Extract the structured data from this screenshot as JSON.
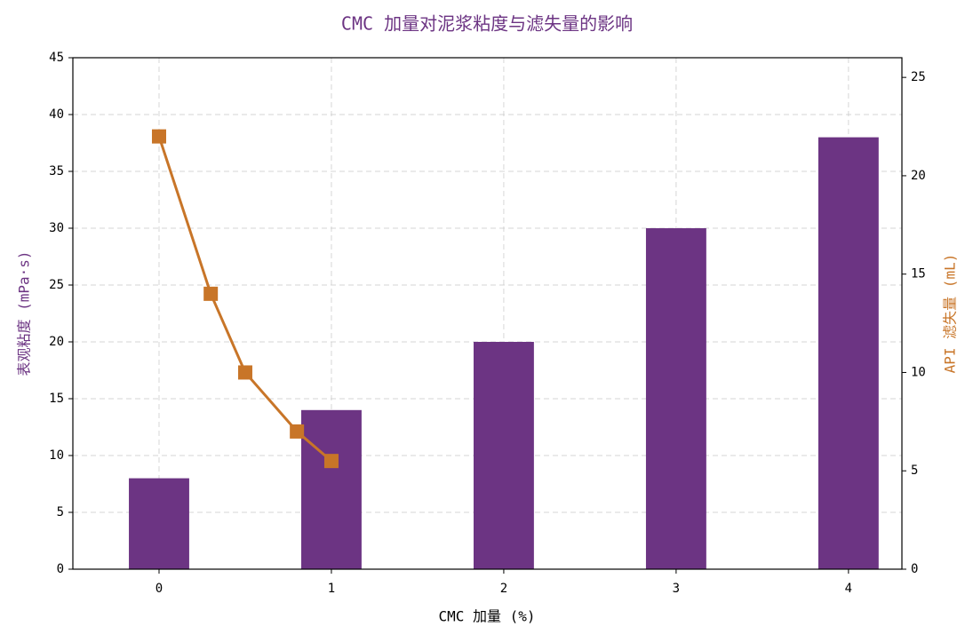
{
  "chart_data": {
    "type": "bar",
    "title": "CMC 加量对泥浆粘度与滤失量的影响",
    "xlabel": "CMC 加量 (%)",
    "ylabel": "表观粘度 (mPa·s)",
    "y2label": "API 滤失量 (mL)",
    "series": [
      {
        "type": "bar",
        "color": "#6c3483",
        "x": [
          0,
          1,
          2,
          3,
          4
        ],
        "values": [
          8,
          14,
          20,
          30,
          38
        ]
      },
      {
        "type": "line",
        "axis": "y2",
        "color": "#c87528",
        "x": [
          0,
          0.3,
          0.5,
          0.8,
          1.0
        ],
        "values": [
          22,
          14,
          10,
          7,
          5.5
        ]
      }
    ],
    "xlim": [
      -0.5,
      4.31
    ],
    "xticks": [
      0,
      1,
      2,
      3,
      4
    ],
    "ylim": [
      0,
      45
    ],
    "yticks": [
      0,
      5,
      10,
      15,
      20,
      25,
      30,
      35,
      40,
      45
    ],
    "y2lim": [
      0,
      26
    ],
    "y2ticks": [
      0,
      5,
      10,
      15,
      20,
      25
    ],
    "grid": true,
    "title_color": "#6c3483",
    "ylabel_color": "#6c3483",
    "y2label_color": "#c87528"
  }
}
